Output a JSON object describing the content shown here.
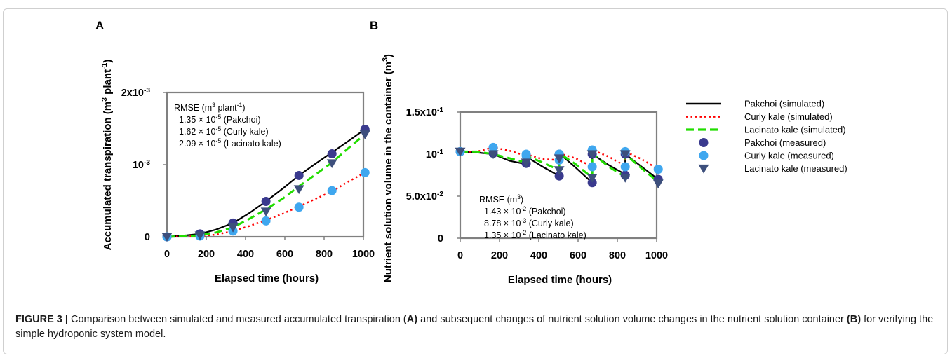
{
  "figure": {
    "caption_label": "FIGURE 3 |",
    "caption_parts": [
      {
        "text": " Comparison between simulated and measured accumulated transpiration ",
        "bold": false
      },
      {
        "text": "(A)",
        "bold": true
      },
      {
        "text": " and subsequent changes of nutrient solution volume changes in the nutrient solution container ",
        "bold": false
      },
      {
        "text": "(B)",
        "bold": true
      },
      {
        "text": " for verifying the simple hydroponic system model.",
        "bold": false
      }
    ]
  },
  "colors": {
    "pakchoi_line": "#000000",
    "curly_line": "#ff0000",
    "lacinato_line": "#22dd00",
    "pakchoi_marker": "#3a3a8e",
    "curly_marker": "#3fa7ef",
    "lacinato_marker": "#3d4f7c",
    "axis": "#808080"
  },
  "legend": [
    {
      "label": "Pakchoi (simulated)",
      "kind": "line",
      "style": "solid",
      "color_key": "pakchoi_line"
    },
    {
      "label": "Curly kale (simulated)",
      "kind": "line",
      "style": "dotted",
      "color_key": "curly_line"
    },
    {
      "label": "Lacinato kale (simulated)",
      "kind": "line",
      "style": "dashed",
      "color_key": "lacinato_line"
    },
    {
      "label": "Pakchoi (measured)",
      "kind": "marker",
      "shape": "circle",
      "color_key": "pakchoi_marker"
    },
    {
      "label": "Curly kale (measured)",
      "kind": "marker",
      "shape": "circle",
      "color_key": "curly_marker"
    },
    {
      "label": "Lacinato kale (measured)",
      "kind": "marker",
      "shape": "triangle-down",
      "color_key": "lacinato_marker"
    }
  ],
  "chart_data": [
    {
      "panel": "A",
      "type": "line",
      "xlabel": "Elapsed time (hours)",
      "ylabel_parts": [
        {
          "t": "Accumulated transpiration (m"
        },
        {
          "t": "3",
          "sup": true
        },
        {
          "t": " plant"
        },
        {
          "t": "-1",
          "sup": true
        },
        {
          "t": ")"
        }
      ],
      "xlim": [
        0,
        1000
      ],
      "ylim": [
        0,
        0.002
      ],
      "xticks": [
        0,
        200,
        400,
        600,
        800,
        1000
      ],
      "yticks": [
        {
          "v": 0,
          "parts": [
            {
              "t": "0"
            }
          ]
        },
        {
          "v": 0.001,
          "parts": [
            {
              "t": "10"
            },
            {
              "t": "-3",
              "sup": true
            }
          ]
        },
        {
          "v": 0.002,
          "parts": [
            {
              "t": "2x10"
            },
            {
              "t": "-3",
              "sup": true
            }
          ]
        }
      ],
      "rmse": {
        "header_parts": [
          {
            "t": "RMSE (m"
          },
          {
            "t": "3",
            "sup": true
          },
          {
            "t": " plant"
          },
          {
            "t": "-1",
            "sup": true
          },
          {
            "t": ")"
          }
        ],
        "lines": [
          [
            {
              "t": "1.35 × 10"
            },
            {
              "t": "-5",
              "sup": true
            },
            {
              "t": " (Pakchoi)"
            }
          ],
          [
            {
              "t": "1.62 × 10"
            },
            {
              "t": "-5",
              "sup": true
            },
            {
              "t": " (Curly kale)"
            }
          ],
          [
            {
              "t": "2.09 × 10"
            },
            {
              "t": "-5",
              "sup": true
            },
            {
              "t": " (Lacinato kale)"
            }
          ]
        ]
      },
      "simulated": [
        {
          "legend_index": 0,
          "x": [
            0,
            100,
            168,
            250,
            336,
            420,
            504,
            590,
            672,
            760,
            840,
            920,
            1008
          ],
          "y": [
            0,
            2e-05,
            4e-05,
            0.0001,
            0.00019,
            0.00033,
            0.00049,
            0.00067,
            0.00085,
            0.00102,
            0.00117,
            0.00132,
            0.00149
          ]
        },
        {
          "legend_index": 1,
          "x": [
            0,
            100,
            168,
            250,
            336,
            420,
            504,
            590,
            672,
            760,
            840,
            920,
            1008
          ],
          "y": [
            0,
            5e-06,
            1e-05,
            3e-05,
            8e-05,
            0.00015,
            0.00023,
            0.00032,
            0.00042,
            0.00053,
            0.00063,
            0.00076,
            0.00089
          ]
        },
        {
          "legend_index": 2,
          "x": [
            0,
            100,
            168,
            250,
            336,
            420,
            504,
            590,
            672,
            760,
            840,
            920,
            1008
          ],
          "y": [
            0,
            1e-05,
            2e-05,
            6e-05,
            0.00013,
            0.00025,
            0.00038,
            0.00053,
            0.0007,
            0.00087,
            0.00103,
            0.00122,
            0.00142
          ]
        }
      ],
      "measured": [
        {
          "legend_index": 3,
          "x": [
            0,
            168,
            336,
            504,
            672,
            840,
            1008
          ],
          "y": [
            0,
            4e-05,
            0.00019,
            0.00049,
            0.00085,
            0.00115,
            0.00149
          ]
        },
        {
          "legend_index": 4,
          "x": [
            0,
            168,
            336,
            504,
            672,
            840,
            1008
          ],
          "y": [
            0,
            1e-05,
            8e-05,
            0.00022,
            0.00041,
            0.00064,
            0.00089
          ]
        },
        {
          "legend_index": 5,
          "x": [
            0,
            168,
            336,
            504,
            672,
            840,
            1008
          ],
          "y": [
            0,
            2e-05,
            0.00013,
            0.00035,
            0.00066,
            0.00102,
            0.00142
          ]
        }
      ]
    },
    {
      "panel": "B",
      "type": "line",
      "xlabel": "Elapsed time (hours)",
      "ylabel_parts": [
        {
          "t": "Nutrient solution volume in the container (m"
        },
        {
          "t": "3",
          "sup": true
        },
        {
          "t": ")"
        }
      ],
      "xlim": [
        0,
        1000
      ],
      "ylim": [
        0,
        0.15
      ],
      "xticks": [
        0,
        200,
        400,
        600,
        800,
        1000
      ],
      "yticks": [
        {
          "v": 0,
          "parts": [
            {
              "t": "0"
            }
          ]
        },
        {
          "v": 0.05,
          "parts": [
            {
              "t": "5.0x10"
            },
            {
              "t": "-2",
              "sup": true
            }
          ]
        },
        {
          "v": 0.1,
          "parts": [
            {
              "t": "10"
            },
            {
              "t": "-1",
              "sup": true
            }
          ]
        },
        {
          "v": 0.15,
          "parts": [
            {
              "t": "1.5x10"
            },
            {
              "t": "-1",
              "sup": true
            }
          ]
        }
      ],
      "rmse": {
        "header_parts": [
          {
            "t": "RMSE (m"
          },
          {
            "t": "3",
            "sup": true
          },
          {
            "t": ")"
          }
        ],
        "lines": [
          [
            {
              "t": "1.43 × 10"
            },
            {
              "t": "-2",
              "sup": true
            },
            {
              "t": " (Pakchoi)"
            }
          ],
          [
            {
              "t": "8.78 × 10"
            },
            {
              "t": "-3",
              "sup": true
            },
            {
              "t": " (Curly kale)"
            }
          ],
          [
            {
              "t": "1.35 × 10"
            },
            {
              "t": "-2",
              "sup": true
            },
            {
              "t": " (Lacinato kale)"
            }
          ]
        ]
      },
      "simulated": [
        {
          "legend_index": 0,
          "x": [
            0,
            84,
            168,
            168,
            252,
            336,
            336,
            420,
            504,
            504,
            588,
            672,
            672,
            756,
            840,
            840,
            924,
            1008
          ],
          "y": [
            0.103,
            0.102,
            0.1,
            0.1,
            0.092,
            0.088,
            0.097,
            0.085,
            0.074,
            0.101,
            0.084,
            0.066,
            0.1,
            0.087,
            0.076,
            0.1,
            0.085,
            0.07
          ]
        },
        {
          "legend_index": 1,
          "x": [
            0,
            84,
            168,
            168,
            252,
            336,
            336,
            420,
            504,
            504,
            588,
            672,
            672,
            756,
            840,
            840,
            924,
            1008
          ],
          "y": [
            0.103,
            0.103,
            0.108,
            0.108,
            0.104,
            0.098,
            0.1,
            0.094,
            0.093,
            0.101,
            0.095,
            0.085,
            0.105,
            0.097,
            0.086,
            0.103,
            0.094,
            0.082
          ]
        },
        {
          "legend_index": 2,
          "x": [
            0,
            84,
            168,
            168,
            252,
            336,
            336,
            420,
            504,
            504,
            588,
            672,
            672,
            756,
            840,
            840,
            924,
            1008
          ],
          "y": [
            0.103,
            0.103,
            0.1,
            0.1,
            0.095,
            0.09,
            0.098,
            0.09,
            0.081,
            0.101,
            0.088,
            0.072,
            0.101,
            0.085,
            0.073,
            0.1,
            0.083,
            0.067
          ]
        }
      ],
      "measured": [
        {
          "legend_index": 3,
          "x": [
            0,
            168,
            336,
            504,
            504,
            672,
            672,
            840,
            840,
            1008
          ],
          "y": [
            0.103,
            0.101,
            0.089,
            0.074,
            0.1,
            0.066,
            0.1,
            0.075,
            0.1,
            0.07
          ]
        },
        {
          "legend_index": 4,
          "x": [
            0,
            168,
            336,
            336,
            504,
            504,
            672,
            672,
            840,
            840,
            1008
          ],
          "y": [
            0.103,
            0.108,
            0.1,
            0.098,
            0.093,
            0.1,
            0.085,
            0.105,
            0.085,
            0.103,
            0.082
          ]
        },
        {
          "legend_index": 5,
          "x": [
            0,
            168,
            336,
            504,
            504,
            672,
            672,
            840,
            840,
            1008
          ],
          "y": [
            0.103,
            0.1,
            0.09,
            0.081,
            0.095,
            0.072,
            0.1,
            0.072,
            0.1,
            0.065
          ]
        }
      ]
    }
  ]
}
